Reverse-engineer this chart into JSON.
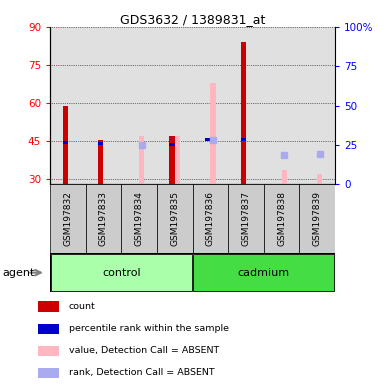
{
  "title": "GDS3632 / 1389831_at",
  "samples": [
    "GSM197832",
    "GSM197833",
    "GSM197834",
    "GSM197835",
    "GSM197836",
    "GSM197837",
    "GSM197838",
    "GSM197839"
  ],
  "ylim_left": [
    28,
    90
  ],
  "ylim_right": [
    0,
    100
  ],
  "yticks_left": [
    30,
    45,
    60,
    75,
    90
  ],
  "yticks_right": [
    0,
    25,
    50,
    75,
    100
  ],
  "yticklabels_right": [
    "0",
    "25",
    "50",
    "75",
    "100%"
  ],
  "bar_width": 0.15,
  "count_values": [
    59.0,
    45.5,
    null,
    47.0,
    null,
    84.0,
    null,
    null
  ],
  "rank_values": [
    44.5,
    44.0,
    null,
    43.5,
    45.5,
    45.5,
    null,
    null
  ],
  "absent_value_values": [
    null,
    null,
    47.0,
    47.0,
    68.0,
    null,
    33.5,
    32.0
  ],
  "absent_rank_values": [
    null,
    null,
    43.5,
    null,
    45.5,
    null,
    39.5,
    40.0
  ],
  "count_color": "#CC0000",
  "rank_color": "#0000CC",
  "absent_value_color": "#FFB6C1",
  "absent_rank_color": "#AAAAEE",
  "col_bg_color": "#CCCCCC",
  "plot_bg": "#FFFFFF",
  "control_color_light": "#AAFFAA",
  "cadmium_color": "#44DD44",
  "legend_items": [
    {
      "label": "count",
      "color": "#CC0000"
    },
    {
      "label": "percentile rank within the sample",
      "color": "#0000CC"
    },
    {
      "label": "value, Detection Call = ABSENT",
      "color": "#FFB6C1"
    },
    {
      "label": "rank, Detection Call = ABSENT",
      "color": "#AAAAEE"
    }
  ]
}
